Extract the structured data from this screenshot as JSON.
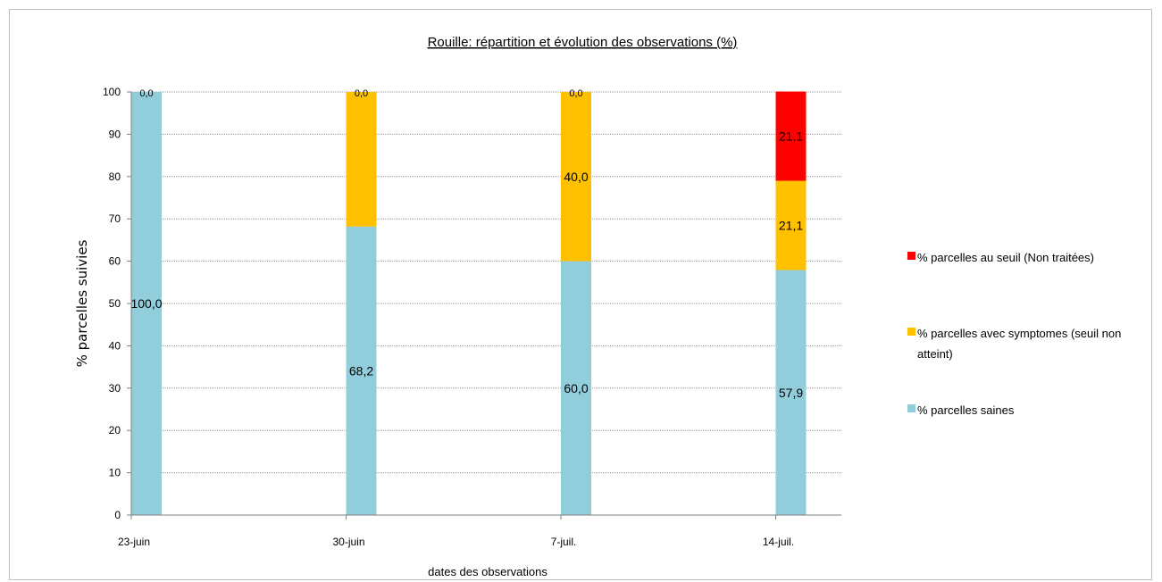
{
  "chart_data": {
    "type": "bar",
    "stacked": true,
    "title": "Rouille: répartition et évolution des observations (%)",
    "xlabel": "dates des observations",
    "ylabel": "% parcelles suivies",
    "ylim": [
      0,
      100
    ],
    "yticks": [
      0,
      10,
      20,
      30,
      40,
      50,
      60,
      70,
      80,
      90,
      100
    ],
    "grid": true,
    "legend_position": "right",
    "categories": [
      "23-juin",
      "30-juin",
      "7-juil.",
      "14-juil."
    ],
    "series": [
      {
        "name": "% parcelles saines",
        "color": "#92cddc",
        "values": [
          100.0,
          68.2,
          60.0,
          57.9
        ],
        "labels": [
          "100,0",
          "68,2",
          "60,0",
          "57,9"
        ]
      },
      {
        "name": "% parcelles avec symptomes (seuil non atteint)",
        "color": "#ffc000",
        "values": [
          0.0,
          31.8,
          40.0,
          21.1
        ],
        "labels": [
          "0,0",
          "",
          "40,0",
          "21,1"
        ]
      },
      {
        "name": "% parcelles au seuil (Non traitées)",
        "color": "#ff0000",
        "values": [
          0.0,
          0.0,
          0.0,
          21.1
        ],
        "labels": [
          "",
          "0,0",
          "0,0",
          "21,1"
        ]
      }
    ],
    "legend_lines": [
      [
        "% parcelles au seuil (Non traitées)"
      ],
      [
        "% parcelles avec symptomes (seuil non",
        "atteint)"
      ],
      [
        "% parcelles saines"
      ]
    ]
  }
}
